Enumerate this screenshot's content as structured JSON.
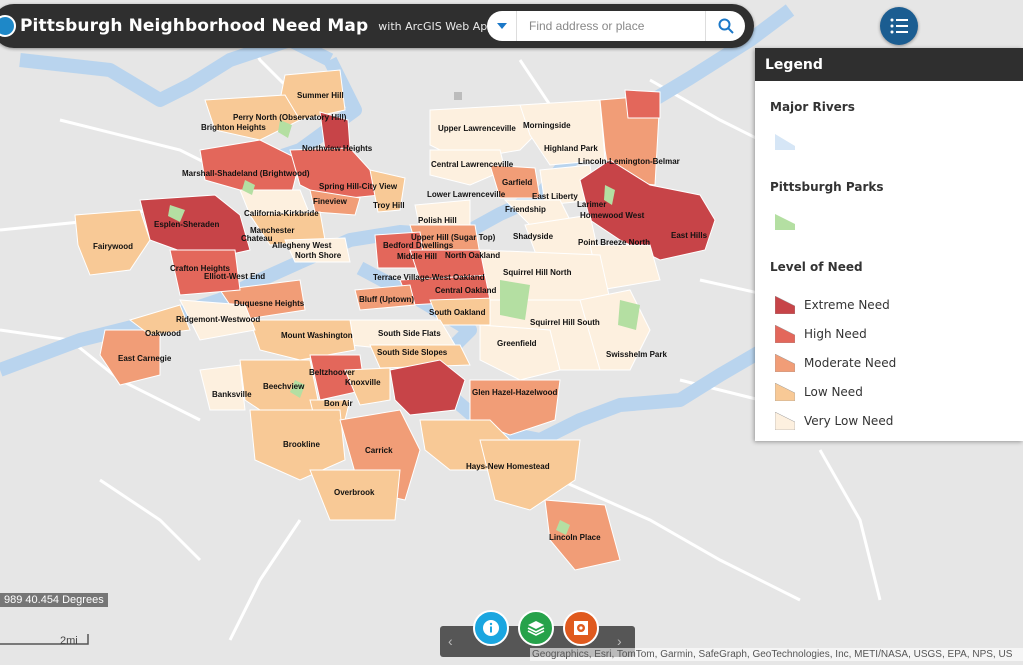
{
  "header": {
    "title": "Pittsburgh Neighborhood Need Map",
    "subtitle": "with ArcGIS Web AppBuilder"
  },
  "search": {
    "placeholder": "Find address or place"
  },
  "legend": {
    "title": "Legend",
    "sections": {
      "rivers": "Major Rivers",
      "parks": "Pittsburgh Parks",
      "need": "Level of Need"
    },
    "levels": [
      {
        "label": "Extreme Need",
        "color": "#c74448"
      },
      {
        "label": "High Need",
        "color": "#e3675b"
      },
      {
        "label": "Moderate Need",
        "color": "#f19d77"
      },
      {
        "label": "Low Need",
        "color": "#f8c996"
      },
      {
        "label": "Very Low Need",
        "color": "#fdf0df"
      }
    ],
    "river_color": "#d6e6f6",
    "park_color": "#b4dfa2"
  },
  "coordinate_readout": "989 40.454 Degrees",
  "scale_label": "2mi",
  "attribution": "Geographics, Esri, TomTom, Garmin, SafeGraph, GeoTechnologies, Inc, METI/NASA, USGS, EPA, NPS, US",
  "neighborhoods": {
    "summer_hill": "Summer Hill",
    "perry_north": "Perry North (Observatory Hill)",
    "brighton_heights": "Brighton Heights",
    "northview_heights": "Northview Heights",
    "upper_lawrenceville": "Upper Lawrenceville",
    "morningside": "Morningside",
    "highland_park": "Highland Park",
    "lincoln_lemington": "Lincoln-Lemington-Belmar",
    "central_lawrenceville": "Central Lawrenceville",
    "marshall_shadeland": "Marshall-Shadeland (Brightwood)",
    "spring_hill": "Spring Hill-City View",
    "garfield": "Garfield",
    "fineview": "Fineview",
    "lower_lawrenceville": "Lower Lawrenceville",
    "east_liberty": "East Liberty",
    "troy_hill": "Troy Hill",
    "friendship": "Friendship",
    "larimer": "Larimer",
    "homewood_west": "Homewood West",
    "california_kirkbride": "California-Kirkbride",
    "espen_sheraden": "Esplen-Sheraden",
    "polish_hill": "Polish Hill",
    "manchester": "Manchester",
    "east_hills": "East Hills",
    "chateau": "Chateau",
    "upper_hill": "Upper Hill (Sugar Top)",
    "shadyside": "Shadyside",
    "allegheny_west": "Allegheny West",
    "bedford_dwellings": "Bedford Dwellings",
    "point_breeze_north": "Point Breeze North",
    "fairywood": "Fairywood",
    "north_shore": "North Shore",
    "middle_hill": "Middle Hill",
    "north_oakland": "North Oakland",
    "crafton_heights": "Crafton Heights",
    "squirrel_hill_north": "Squirrel Hill North",
    "elliott_west_end": "Elliott-West End",
    "terrace_village": "Terrace Village-West Oakland",
    "central_oakland": "Central Oakland",
    "bluff": "Bluff (Uptown)",
    "duquesne_heights": "Duquesne Heights",
    "south_oakland": "South Oakland",
    "ridgemont_westwood": "Ridgemont-Westwood",
    "squirrel_hill_south": "Squirrel Hill South",
    "oakwood": "Oakwood",
    "mount_washington": "Mount Washington",
    "south_side_flats": "South Side Flats",
    "greenfield": "Greenfield",
    "south_side_slopes": "South Side Slopes",
    "east_carnegie": "East Carnegie",
    "swisshelm_park": "Swisshelm Park",
    "beltzhoover": "Beltzhoover",
    "knoxville": "Knoxville",
    "beechview": "Beechview",
    "glen_hazel": "Glen Hazel-Hazelwood",
    "banksville": "Banksville",
    "bon_air": "Bon Air",
    "brookline": "Brookline",
    "carrick": "Carrick",
    "hays_new_homestead": "Hays-New Homestead",
    "overbrook": "Overbrook",
    "lincoln_place": "Lincoln Place"
  }
}
